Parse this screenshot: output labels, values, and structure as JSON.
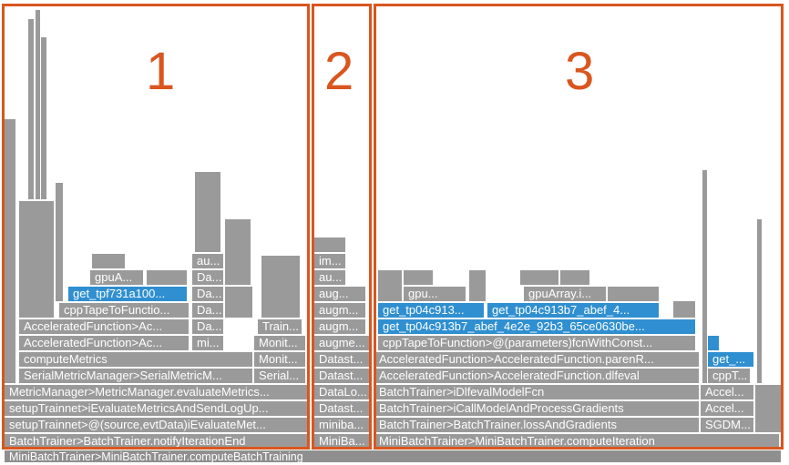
{
  "root": {
    "label": "MiniBatchTrainer>MiniBatchTrainer.computeBatchTraining"
  },
  "regions": [
    {
      "label": "1"
    },
    {
      "label": "2"
    },
    {
      "label": "3"
    }
  ],
  "colors": {
    "frame": "#9a9a9a",
    "highlight": "#2f8fd0",
    "region_border": "#d9561f"
  },
  "frames": [
    {
      "label": "BatchTrainer>BatchTrainer.notifyIterationEnd"
    },
    {
      "label": "setupTrainnet>@(source,evtData)iEvaluateMet..."
    },
    {
      "label": "setupTrainnet>iEvaluateMetricsAndSendLogUp..."
    },
    {
      "label": "MetricManager>MetricManager.evaluateMetrics..."
    },
    {
      "label": "SerialMetricManager>SerialMetricM..."
    },
    {
      "label": "Serial..."
    },
    {
      "label": "computeMetrics"
    },
    {
      "label": "Monit..."
    },
    {
      "label": "AcceleratedFunction>Ac..."
    },
    {
      "label": "mi..."
    },
    {
      "label": "Monit..."
    },
    {
      "label": "AcceleratedFunction>Ac..."
    },
    {
      "label": "Da..."
    },
    {
      "label": "Train..."
    },
    {
      "label": "cppTapeToFunctio..."
    },
    {
      "label": "Da..."
    },
    {
      "label": "get_tpf731a100..."
    },
    {
      "label": "Da..."
    },
    {
      "label": "gpuA..."
    },
    {
      "label": "Da..."
    },
    {
      "label": "au..."
    },
    {
      "label": "MiniBa..."
    },
    {
      "label": "miniba..."
    },
    {
      "label": "Datast..."
    },
    {
      "label": "DataLo..."
    },
    {
      "label": "Datast..."
    },
    {
      "label": "Datast..."
    },
    {
      "label": "augme..."
    },
    {
      "label": "augm..."
    },
    {
      "label": "augm..."
    },
    {
      "label": "aug..."
    },
    {
      "label": "au..."
    },
    {
      "label": "im..."
    },
    {
      "label": "MiniBatchTrainer>MiniBatchTrainer.computeIteration"
    },
    {
      "label": "BatchTrainer>BatchTrainer.lossAndGradients"
    },
    {
      "label": "BatchTrainer>iCallModelAndProcessGradients"
    },
    {
      "label": "BatchTrainer>iDlfevalModelFcn"
    },
    {
      "label": "AcceleratedFunction>AcceleratedFunction.dlfeval"
    },
    {
      "label": "cppTapeToFunction>@(parameters)fcnWithConst..."
    },
    {
      "label": "get_tp04c913b7_abef_4e2e_92b3_65ce0630be..."
    },
    {
      "label": "get_tp04c913..."
    },
    {
      "label": "get_tp04c913b7_abef_4..."
    },
    {
      "label": "gpu..."
    },
    {
      "label": "gpuArray.i..."
    },
    {
      "label": "AcceleratedFunction>AcceleratedFunction.parenR..."
    },
    {
      "label": "SGDM..."
    },
    {
      "label": "Accel..."
    },
    {
      "label": "Accel..."
    },
    {
      "label": "cppT..."
    },
    {
      "label": "get_..."
    }
  ]
}
